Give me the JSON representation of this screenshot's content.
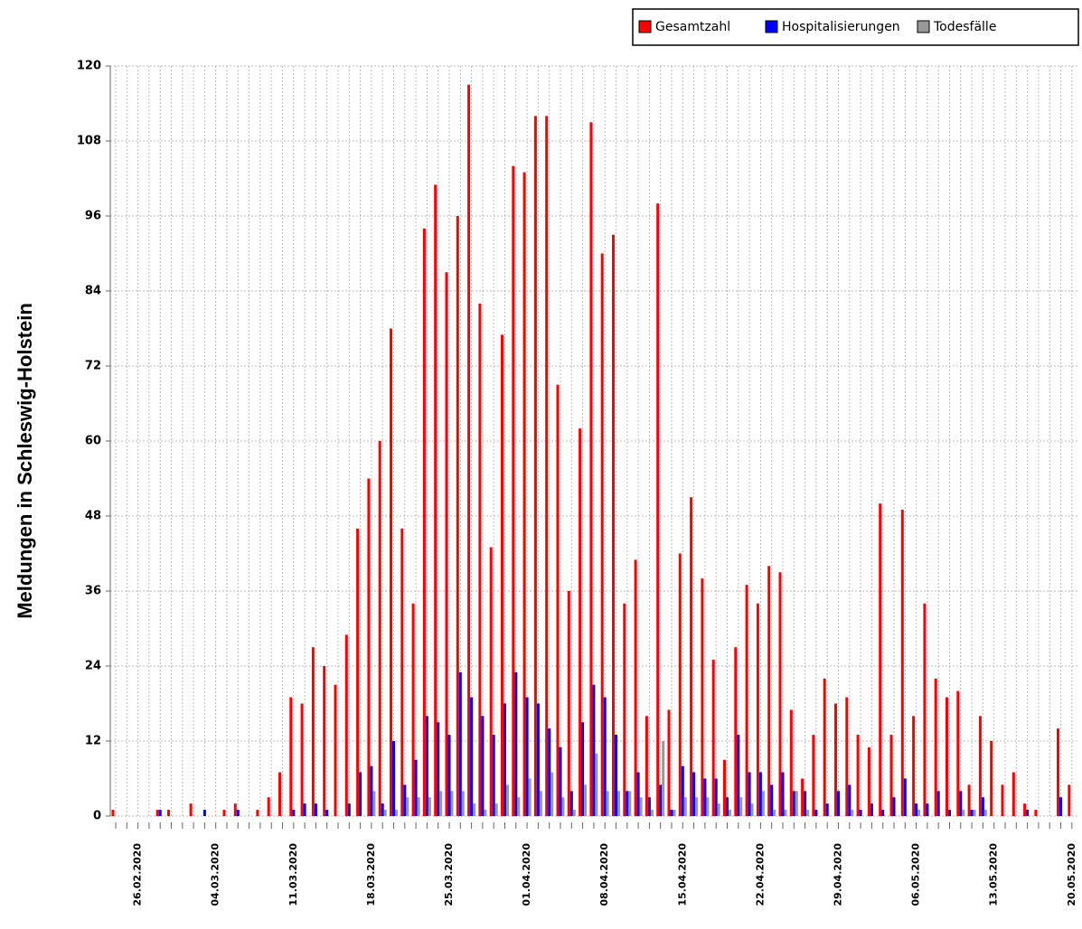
{
  "chart_data": {
    "type": "bar",
    "y_label": "Meldungen in Schleswig-Holstein",
    "categories": [
      null,
      null,
      "26.02.2020",
      null,
      null,
      null,
      null,
      null,
      null,
      "04.03.2020",
      null,
      null,
      null,
      null,
      null,
      null,
      "11.03.2020",
      null,
      null,
      null,
      null,
      null,
      null,
      "18.03.2020",
      null,
      null,
      null,
      null,
      null,
      null,
      "25.03.2020",
      null,
      null,
      null,
      null,
      null,
      null,
      "01.04.2020",
      null,
      null,
      null,
      null,
      null,
      null,
      "08.04.2020",
      null,
      null,
      null,
      null,
      null,
      null,
      "15.04.2020",
      null,
      null,
      null,
      null,
      null,
      null,
      "22.04.2020",
      null,
      null,
      null,
      null,
      null,
      null,
      "29.04.2020",
      null,
      null,
      null,
      null,
      null,
      null,
      "06.05.2020",
      null,
      null,
      null,
      null,
      null,
      null,
      "13.05.2020",
      null,
      null,
      null,
      null,
      null,
      null,
      "20.05.2020"
    ],
    "series": [
      {
        "name": "Gesamtzahl",
        "color": "#ff0000",
        "values": [
          1,
          0,
          0,
          0,
          1,
          1,
          0,
          2,
          0,
          0,
          1,
          2,
          0,
          1,
          3,
          7,
          19,
          18,
          27,
          24,
          21,
          29,
          46,
          54,
          60,
          78,
          46,
          34,
          94,
          101,
          87,
          96,
          117,
          82,
          43,
          77,
          104,
          103,
          112,
          112,
          69,
          36,
          62,
          111,
          90,
          93,
          34,
          41,
          16,
          98,
          17,
          42,
          51,
          38,
          25,
          9,
          27,
          37,
          34,
          40,
          39,
          17,
          6,
          13,
          22,
          18,
          19,
          13,
          11,
          50,
          13,
          49,
          16,
          34,
          22,
          19,
          20,
          5,
          16,
          12,
          5,
          7,
          2,
          1,
          0,
          14,
          5
        ]
      },
      {
        "name": "Hospitalisierungen",
        "color": "#0000ff",
        "values": [
          0,
          0,
          0,
          0,
          1,
          0,
          0,
          0,
          1,
          0,
          0,
          1,
          0,
          0,
          0,
          0,
          1,
          2,
          2,
          1,
          0,
          2,
          7,
          8,
          2,
          12,
          5,
          9,
          16,
          15,
          13,
          23,
          19,
          16,
          13,
          18,
          23,
          19,
          18,
          14,
          11,
          4,
          15,
          21,
          19,
          13,
          4,
          7,
          3,
          5,
          1,
          8,
          7,
          6,
          6,
          3,
          13,
          7,
          7,
          5,
          7,
          4,
          4,
          1,
          2,
          4,
          5,
          1,
          2,
          1,
          3,
          6,
          2,
          2,
          4,
          1,
          4,
          1,
          3,
          0,
          0,
          0,
          1,
          0,
          0,
          3,
          0
        ]
      },
      {
        "name": "Todesfälle",
        "color": "#999999",
        "values": [
          0,
          0,
          0,
          0,
          0,
          0,
          0,
          0,
          0,
          0,
          0,
          0,
          0,
          0,
          0,
          0,
          0,
          0,
          0,
          0,
          0,
          0,
          0,
          4,
          1,
          1,
          3,
          3,
          3,
          4,
          4,
          4,
          2,
          1,
          2,
          5,
          3,
          6,
          4,
          7,
          3,
          1,
          5,
          10,
          4,
          4,
          4,
          3,
          1,
          12,
          1,
          3,
          3,
          3,
          2,
          1,
          3,
          2,
          4,
          1,
          1,
          4,
          1,
          0,
          0,
          0,
          1,
          0,
          0,
          0,
          0,
          0,
          1,
          0,
          0,
          0,
          1,
          1,
          1,
          0,
          0,
          0,
          0,
          0,
          0,
          0,
          0
        ]
      }
    ],
    "ylim": [
      0,
      120
    ],
    "yticks": [
      0,
      12,
      24,
      36,
      48,
      60,
      72,
      84,
      96,
      108,
      120
    ],
    "grid": true,
    "legend": "top-right"
  }
}
